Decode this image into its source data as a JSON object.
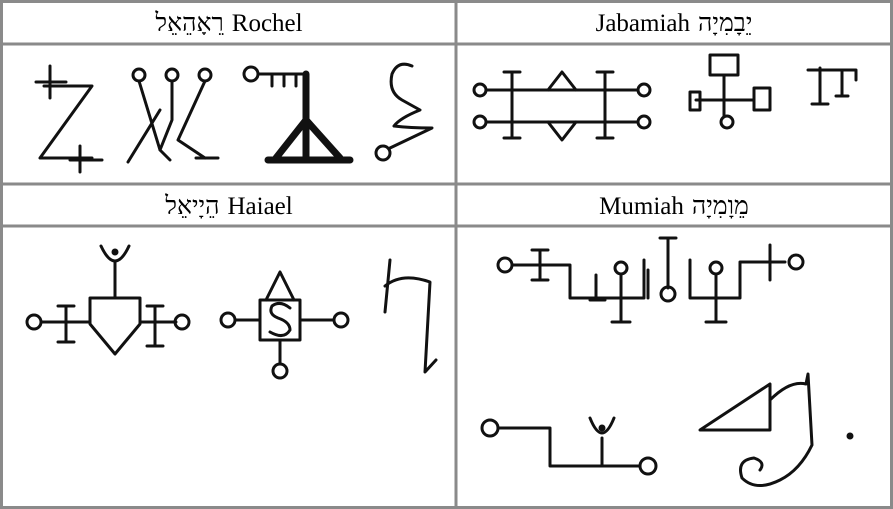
{
  "table": {
    "rows": [
      [
        {
          "hebrew": "רֵאָהֵאֵל",
          "name": "Rochel"
        },
        {
          "hebrew": "יֵבָמִיָה",
          "name": "Jabamiah"
        }
      ],
      [
        {
          "hebrew": "הֵיָיאֵל",
          "name": "Haiael"
        },
        {
          "hebrew": "מֵוָמִיָה",
          "name": "Mumiah"
        }
      ]
    ]
  }
}
